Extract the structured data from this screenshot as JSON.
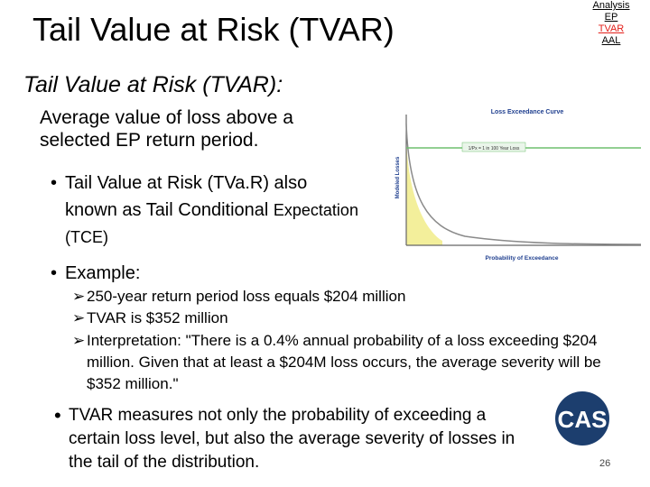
{
  "slide": {
    "title": "Tail Value at Risk (TVAR)",
    "nav": [
      "Analysis",
      "EP",
      "TVAR",
      "AAL"
    ],
    "subtitle": "Tail Value at Risk (TVAR):",
    "definition": "Average value of loss above a selected EP return period.",
    "bullet1_main": "Tail Value at Risk (TVa.R) also known as Tail Conditional",
    "bullet1_small": "Expectation (TCE)",
    "bullet2": "Example:",
    "sub1": "250-year return period loss equals $204 million",
    "sub2": "TVAR is $352 million",
    "sub3_line1": "Interpretation: \"There is a 0.4% annual probability of a loss exceeding $204",
    "sub3_line2": "million. Given that at least a $204M loss occurs, the average severity will be",
    "sub3_line3": "$352 million.\"",
    "bullet3": "TVAR measures not only the probability of exceeding a certain loss level, but also the average severity of losses in the tail of the distribution.",
    "page_number": "26",
    "logo_text": "CAS"
  },
  "chart_data": {
    "type": "line",
    "title": "Loss Exceedance Curve",
    "xlabel": "Probability of Exceedance",
    "ylabel": "Modeled Losses",
    "annotation": "1/Px = 1 in 100 Year Loss",
    "grid": false,
    "legend": "none"
  },
  "colors": {
    "nav_active": "#e3201b",
    "chart_title": "#1f3f8f",
    "curve": "#8a8a8a",
    "tail_fill": "#f3ef9b",
    "annotation_line": "#6fbf6f",
    "logo_bg": "#1c3e6e"
  }
}
